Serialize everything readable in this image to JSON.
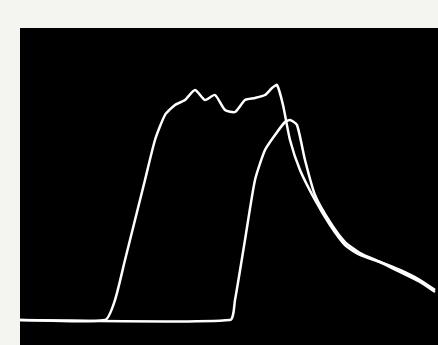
{
  "chart_data": {
    "type": "line",
    "tick_labels": false,
    "grid": false,
    "xlim": [
      0,
      418
    ],
    "ylim": [
      0,
      317
    ],
    "series": [
      {
        "color": "#ffffff",
        "x": [
          0,
          85,
          95,
          105,
          115,
          125,
          135,
          145,
          155,
          165,
          175,
          185,
          195,
          205,
          215,
          225,
          235,
          245,
          252,
          257,
          263,
          270,
          280,
          295,
          310,
          325,
          340,
          360,
          380,
          400,
          415
        ],
        "values": [
          25,
          25,
          45,
          85,
          125,
          165,
          205,
          230,
          240,
          245,
          255,
          245,
          250,
          235,
          233,
          245,
          247,
          250,
          257,
          260,
          240,
          205,
          175,
          145,
          120,
          100,
          90,
          83,
          75,
          65,
          55
        ]
      },
      {
        "color": "#ffffff",
        "x": [
          0,
          210,
          215,
          225,
          235,
          245,
          255,
          265,
          270,
          277,
          285,
          295,
          310,
          325,
          340,
          360,
          380,
          400,
          415
        ],
        "values": [
          25,
          25,
          45,
          105,
          165,
          195,
          210,
          223,
          225,
          220,
          185,
          150,
          123,
          103,
          92,
          83,
          73,
          63,
          53
        ]
      }
    ]
  }
}
